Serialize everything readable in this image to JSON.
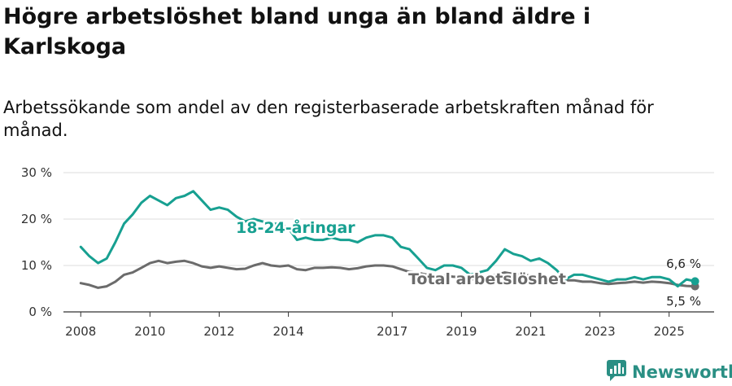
{
  "title": "Högre arbetslöshet bland unga än bland äldre i Karlskoga",
  "subtitle": "Arbetssökande som andel av den registerbaserade arbetskraften månad för månad.",
  "brand": {
    "name": "Newsworthy",
    "icon": "newsworthy-logo-icon"
  },
  "colors": {
    "youth": "#17a091",
    "total": "#6b6b6b",
    "grid": "#dddddd",
    "brand": "#2a8f84"
  },
  "chart_data": {
    "type": "line",
    "title": "Högre arbetslöshet bland unga än bland äldre i Karlskoga",
    "xlabel": "",
    "ylabel": "",
    "ylim": [
      0,
      30
    ],
    "xlim": [
      2007.5,
      2026.3
    ],
    "grid": true,
    "y_ticks": [
      {
        "value": 0,
        "label": "0 %"
      },
      {
        "value": 10,
        "label": "10 %"
      },
      {
        "value": 20,
        "label": "20 %"
      },
      {
        "value": 30,
        "label": "30 %"
      }
    ],
    "x_ticks": [
      {
        "value": 2008,
        "label": "2008"
      },
      {
        "value": 2010,
        "label": "2010"
      },
      {
        "value": 2012,
        "label": "2012"
      },
      {
        "value": 2014,
        "label": "2014"
      },
      {
        "value": 2017,
        "label": "2017"
      },
      {
        "value": 2019,
        "label": "2019"
      },
      {
        "value": 2021,
        "label": "2021"
      },
      {
        "value": 2023,
        "label": "2023"
      },
      {
        "value": 2025,
        "label": "2025"
      }
    ],
    "series": [
      {
        "name": "18-24-åringar",
        "x": [
          2008.0,
          2008.25,
          2008.5,
          2008.75,
          2009.0,
          2009.25,
          2009.5,
          2009.75,
          2010.0,
          2010.25,
          2010.5,
          2010.75,
          2011.0,
          2011.25,
          2011.5,
          2011.75,
          2012.0,
          2012.25,
          2012.5,
          2012.75,
          2013.0,
          2013.25,
          2013.5,
          2013.75,
          2014.0,
          2014.25,
          2014.5,
          2014.75,
          2015.0,
          2015.25,
          2015.5,
          2015.75,
          2016.0,
          2016.25,
          2016.5,
          2016.75,
          2017.0,
          2017.25,
          2017.5,
          2017.75,
          2018.0,
          2018.25,
          2018.5,
          2018.75,
          2019.0,
          2019.25,
          2019.5,
          2019.75,
          2020.0,
          2020.25,
          2020.5,
          2020.75,
          2021.0,
          2021.25,
          2021.5,
          2021.75,
          2022.0,
          2022.25,
          2022.5,
          2022.75,
          2023.0,
          2023.25,
          2023.5,
          2023.75,
          2024.0,
          2024.25,
          2024.5,
          2024.75,
          2025.0,
          2025.25,
          2025.5,
          2025.75
        ],
        "values": [
          14,
          12,
          10.5,
          11.5,
          15,
          19,
          21,
          23.5,
          25,
          24,
          23,
          24.5,
          25,
          26,
          24,
          22,
          22.5,
          22,
          20.5,
          19.5,
          20,
          19.5,
          19,
          19,
          18,
          15.5,
          16,
          15.5,
          15.5,
          16,
          15.5,
          15.5,
          15,
          16,
          16.5,
          16.5,
          16,
          14,
          13.5,
          11.5,
          9.5,
          9,
          10,
          10,
          9.5,
          8,
          8.5,
          9,
          11,
          13.5,
          12.5,
          12,
          11,
          11.5,
          10.5,
          9,
          7,
          8,
          8,
          7.5,
          7,
          6.5,
          7,
          7,
          7.5,
          7,
          7.5,
          7.5,
          7,
          5.5,
          7,
          6.6
        ]
      },
      {
        "name": "Total arbetslöshet",
        "x": [
          2008.0,
          2008.25,
          2008.5,
          2008.75,
          2009.0,
          2009.25,
          2009.5,
          2009.75,
          2010.0,
          2010.25,
          2010.5,
          2010.75,
          2011.0,
          2011.25,
          2011.5,
          2011.75,
          2012.0,
          2012.25,
          2012.5,
          2012.75,
          2013.0,
          2013.25,
          2013.5,
          2013.75,
          2014.0,
          2014.25,
          2014.5,
          2014.75,
          2015.0,
          2015.25,
          2015.5,
          2015.75,
          2016.0,
          2016.25,
          2016.5,
          2016.75,
          2017.0,
          2017.25,
          2017.5,
          2017.75,
          2018.0,
          2018.25,
          2018.5,
          2018.75,
          2019.0,
          2019.25,
          2019.5,
          2019.75,
          2020.0,
          2020.25,
          2020.5,
          2020.75,
          2021.0,
          2021.25,
          2021.5,
          2021.75,
          2022.0,
          2022.25,
          2022.5,
          2022.75,
          2023.0,
          2023.25,
          2023.5,
          2023.75,
          2024.0,
          2024.25,
          2024.5,
          2024.75,
          2025.0,
          2025.25,
          2025.5,
          2025.75
        ],
        "values": [
          6.2,
          5.8,
          5.2,
          5.5,
          6.5,
          8,
          8.5,
          9.5,
          10.5,
          11,
          10.5,
          10.8,
          11,
          10.5,
          9.8,
          9.5,
          9.8,
          9.5,
          9.2,
          9.3,
          10,
          10.5,
          10,
          9.8,
          10,
          9.2,
          9,
          9.5,
          9.5,
          9.6,
          9.5,
          9.2,
          9.4,
          9.8,
          10,
          10,
          9.8,
          9.2,
          8.6,
          8.4,
          8,
          7.8,
          7.8,
          7.6,
          7.5,
          7,
          7.2,
          7.5,
          8,
          8.5,
          8.2,
          8,
          7.8,
          7.5,
          7.2,
          7,
          6.8,
          6.8,
          6.5,
          6.5,
          6.2,
          6,
          6.2,
          6.3,
          6.5,
          6.3,
          6.5,
          6.4,
          6.2,
          5.8,
          5.6,
          5.5
        ]
      }
    ],
    "annotations": [
      {
        "series": "18-24-åringar",
        "label": "6,6 %",
        "value": 6.6
      },
      {
        "series": "Total arbetslöshet",
        "label": "5,5 %",
        "value": 5.5
      }
    ],
    "series_labels": [
      {
        "text": "18-24-åringar"
      },
      {
        "text": "Total arbetslöshet"
      }
    ]
  }
}
